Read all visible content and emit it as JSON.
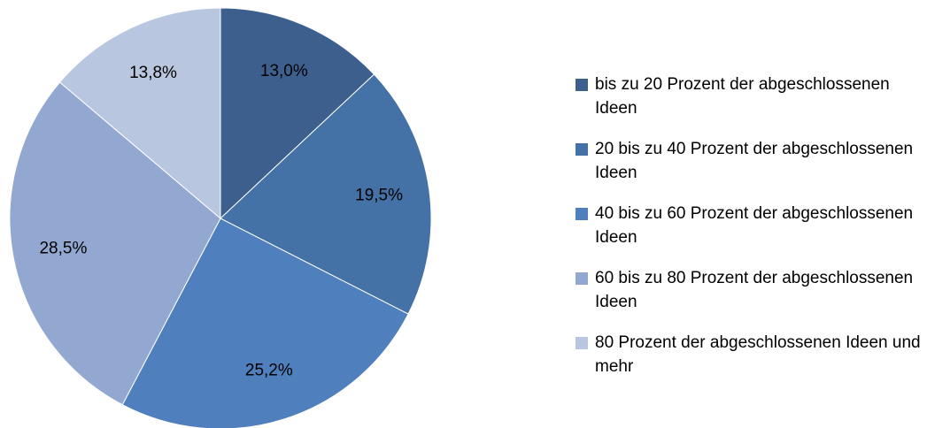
{
  "chart_data": {
    "type": "pie",
    "categories": [
      "bis zu 20 Prozent der abgeschlossenen Ideen",
      "20 bis zu 40 Prozent der abgeschlossenen Ideen",
      "40 bis zu 60 Prozent der abgeschlossenen Ideen",
      "60 bis zu 80 Prozent der abgeschlossenen Ideen",
      "80 Prozent der abgeschlossenen Ideen und mehr"
    ],
    "values": [
      13.0,
      19.5,
      25.2,
      28.5,
      13.8
    ],
    "value_labels": [
      "13,0%",
      "19,5%",
      "25,2%",
      "28,5%",
      "13,8%"
    ],
    "colors": [
      "#3c5f8e",
      "#4471a6",
      "#4f7fbc",
      "#93a8d0",
      "#b9c6e0"
    ],
    "legend": "right"
  }
}
